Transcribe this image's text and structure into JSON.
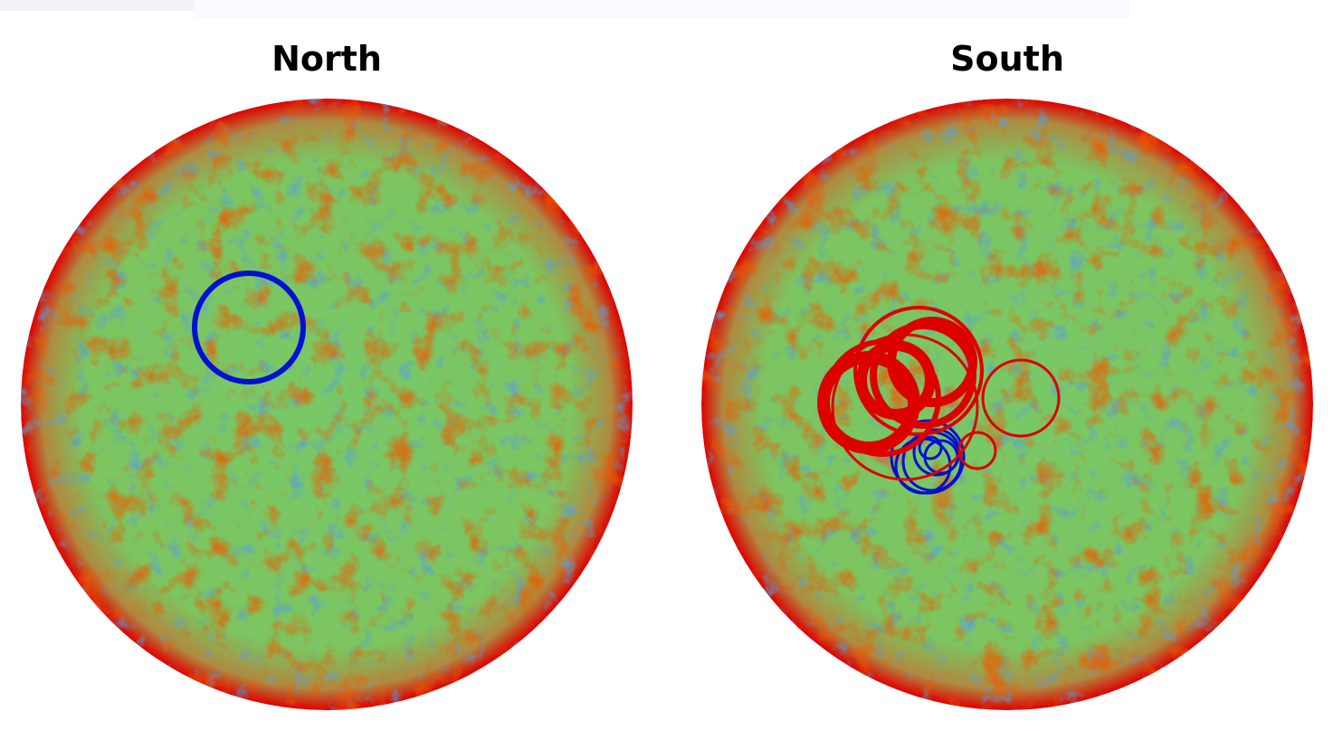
{
  "panels": [
    {
      "title": "North"
    },
    {
      "title": "South"
    }
  ]
}
